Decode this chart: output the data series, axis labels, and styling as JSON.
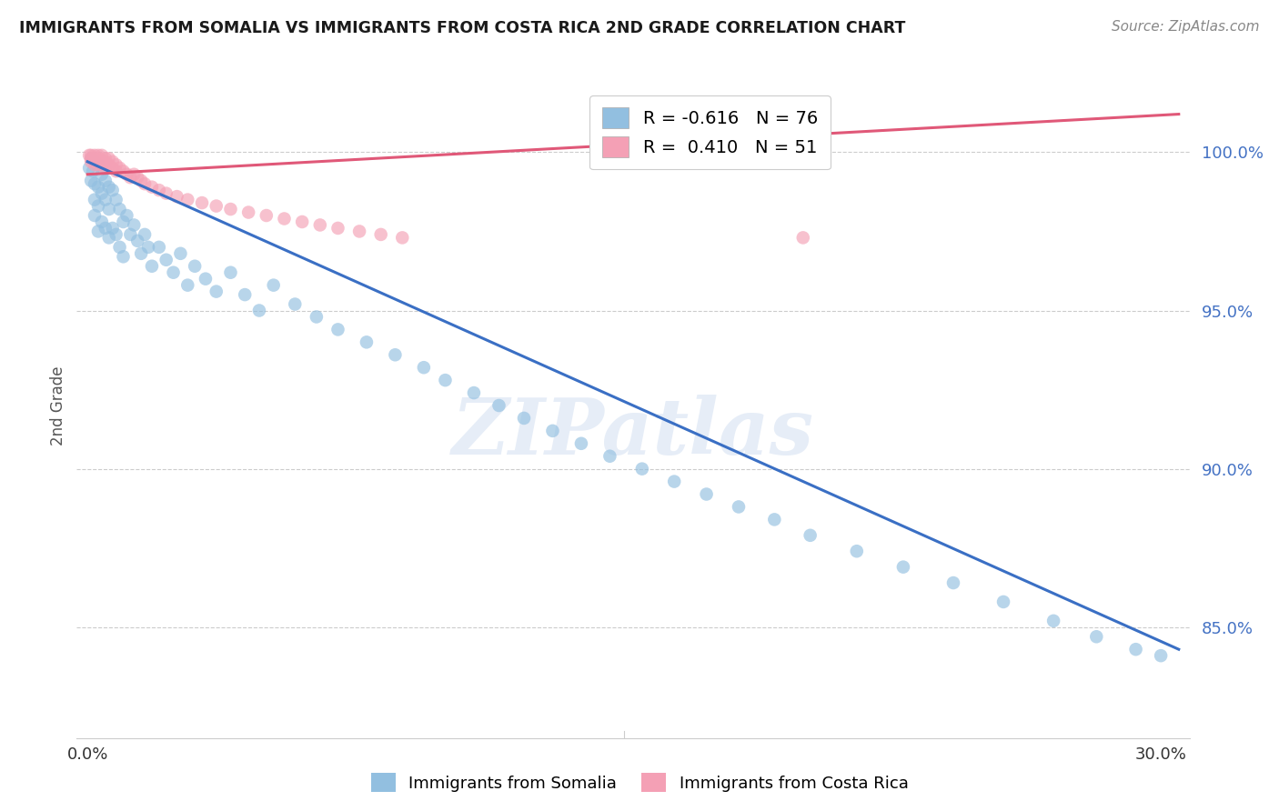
{
  "title": "IMMIGRANTS FROM SOMALIA VS IMMIGRANTS FROM COSTA RICA 2ND GRADE CORRELATION CHART",
  "source": "Source: ZipAtlas.com",
  "ylabel": "2nd Grade",
  "ylim": [
    0.815,
    1.025
  ],
  "xlim": [
    -0.003,
    0.308
  ],
  "somalia_R": -0.616,
  "somalia_N": 76,
  "costarica_R": 0.41,
  "costarica_N": 51,
  "somalia_color": "#92bfe0",
  "costarica_color": "#f4a0b5",
  "somalia_line_color": "#3a6fc4",
  "costarica_line_color": "#e05878",
  "legend_label_somalia": "Immigrants from Somalia",
  "legend_label_costarica": "Immigrants from Costa Rica",
  "watermark": "ZIPatlas",
  "somalia_x": [
    0.0005,
    0.001,
    0.001,
    0.0015,
    0.002,
    0.002,
    0.002,
    0.002,
    0.003,
    0.003,
    0.003,
    0.003,
    0.004,
    0.004,
    0.004,
    0.005,
    0.005,
    0.005,
    0.006,
    0.006,
    0.006,
    0.007,
    0.007,
    0.008,
    0.008,
    0.009,
    0.009,
    0.01,
    0.01,
    0.011,
    0.012,
    0.013,
    0.014,
    0.015,
    0.016,
    0.017,
    0.018,
    0.02,
    0.022,
    0.024,
    0.026,
    0.028,
    0.03,
    0.033,
    0.036,
    0.04,
    0.044,
    0.048,
    0.052,
    0.058,
    0.064,
    0.07,
    0.078,
    0.086,
    0.094,
    0.1,
    0.108,
    0.115,
    0.122,
    0.13,
    0.138,
    0.146,
    0.155,
    0.164,
    0.173,
    0.182,
    0.192,
    0.202,
    0.215,
    0.228,
    0.242,
    0.256,
    0.27,
    0.282,
    0.293,
    0.3
  ],
  "somalia_y": [
    0.995,
    0.998,
    0.991,
    0.994,
    0.997,
    0.99,
    0.985,
    0.98,
    0.996,
    0.989,
    0.983,
    0.975,
    0.993,
    0.987,
    0.978,
    0.991,
    0.985,
    0.976,
    0.989,
    0.982,
    0.973,
    0.988,
    0.976,
    0.985,
    0.974,
    0.982,
    0.97,
    0.978,
    0.967,
    0.98,
    0.974,
    0.977,
    0.972,
    0.968,
    0.974,
    0.97,
    0.964,
    0.97,
    0.966,
    0.962,
    0.968,
    0.958,
    0.964,
    0.96,
    0.956,
    0.962,
    0.955,
    0.95,
    0.958,
    0.952,
    0.948,
    0.944,
    0.94,
    0.936,
    0.932,
    0.928,
    0.924,
    0.92,
    0.916,
    0.912,
    0.908,
    0.904,
    0.9,
    0.896,
    0.892,
    0.888,
    0.884,
    0.879,
    0.874,
    0.869,
    0.864,
    0.858,
    0.852,
    0.847,
    0.843,
    0.841
  ],
  "costarica_x": [
    0.0005,
    0.001,
    0.001,
    0.001,
    0.0015,
    0.002,
    0.002,
    0.002,
    0.002,
    0.003,
    0.003,
    0.003,
    0.003,
    0.004,
    0.004,
    0.004,
    0.005,
    0.005,
    0.005,
    0.006,
    0.006,
    0.007,
    0.007,
    0.008,
    0.008,
    0.009,
    0.01,
    0.011,
    0.012,
    0.013,
    0.014,
    0.015,
    0.016,
    0.018,
    0.02,
    0.022,
    0.025,
    0.028,
    0.032,
    0.036,
    0.04,
    0.045,
    0.05,
    0.055,
    0.06,
    0.065,
    0.07,
    0.076,
    0.082,
    0.2,
    0.088
  ],
  "costarica_y": [
    0.999,
    0.999,
    0.998,
    0.997,
    0.998,
    0.999,
    0.998,
    0.997,
    0.996,
    0.999,
    0.998,
    0.997,
    0.996,
    0.999,
    0.997,
    0.996,
    0.998,
    0.997,
    0.995,
    0.998,
    0.996,
    0.997,
    0.995,
    0.996,
    0.994,
    0.995,
    0.994,
    0.993,
    0.992,
    0.993,
    0.992,
    0.991,
    0.99,
    0.989,
    0.988,
    0.987,
    0.986,
    0.985,
    0.984,
    0.983,
    0.982,
    0.981,
    0.98,
    0.979,
    0.978,
    0.977,
    0.976,
    0.975,
    0.974,
    0.973,
    0.973
  ],
  "y_ticks": [
    0.85,
    0.9,
    0.95,
    1.0
  ],
  "x_ticks": [
    0.0,
    0.05,
    0.1,
    0.15,
    0.2,
    0.25,
    0.3
  ],
  "somalia_line_x": [
    0.0,
    0.305
  ],
  "somalia_line_y": [
    0.997,
    0.843
  ],
  "costarica_line_x": [
    0.0,
    0.305
  ],
  "costarica_line_y": [
    0.993,
    1.012
  ]
}
